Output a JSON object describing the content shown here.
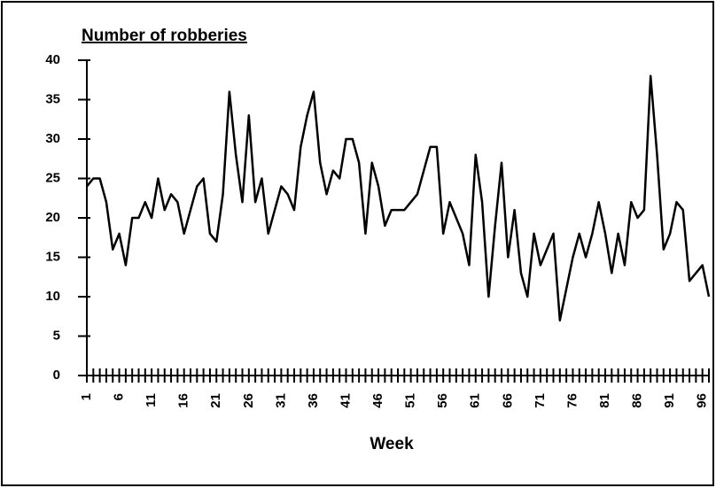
{
  "chart_data": {
    "type": "line",
    "title": "Number of robberies",
    "xlabel": "Week",
    "x": [
      1,
      2,
      3,
      4,
      5,
      6,
      7,
      8,
      9,
      10,
      11,
      12,
      13,
      14,
      15,
      16,
      17,
      18,
      19,
      20,
      21,
      22,
      23,
      24,
      25,
      26,
      27,
      28,
      29,
      30,
      31,
      32,
      33,
      34,
      35,
      36,
      37,
      38,
      39,
      40,
      41,
      42,
      43,
      44,
      45,
      46,
      47,
      48,
      49,
      50,
      51,
      52,
      53,
      54,
      55,
      56,
      57,
      58,
      59,
      60,
      61,
      62,
      63,
      64,
      65,
      66,
      67,
      68,
      69,
      70,
      71,
      72,
      73,
      74,
      75,
      76,
      77,
      78,
      79,
      80,
      81,
      82,
      83,
      84,
      85,
      86,
      87,
      88,
      89,
      90,
      91,
      92,
      93,
      94,
      95,
      96,
      97
    ],
    "series": [
      {
        "name": "Number of robberies",
        "color": "#000000",
        "values": [
          24,
          25,
          25,
          22,
          16,
          18,
          14,
          20,
          20,
          22,
          20,
          25,
          21,
          23,
          22,
          18,
          21,
          24,
          25,
          18,
          17,
          23,
          36,
          28,
          22,
          33,
          22,
          25,
          18,
          21,
          24,
          23,
          21,
          29,
          33,
          36,
          27,
          23,
          26,
          25,
          30,
          30,
          27,
          18,
          27,
          24,
          19,
          21,
          21,
          21,
          22,
          23,
          26,
          29,
          29,
          18,
          22,
          20,
          18,
          14,
          28,
          22,
          10,
          19,
          27,
          15,
          21,
          13,
          10,
          18,
          14,
          16,
          18,
          7,
          11,
          15,
          18,
          15,
          18,
          22,
          18,
          13,
          18,
          14,
          22,
          20,
          21,
          38,
          28,
          16,
          18,
          22,
          21,
          12,
          13,
          14,
          10
        ]
      }
    ],
    "xlim": [
      1,
      97
    ],
    "xticks": [
      1,
      6,
      11,
      16,
      21,
      26,
      31,
      36,
      41,
      46,
      51,
      56,
      61,
      66,
      71,
      76,
      81,
      86,
      91,
      96
    ],
    "ylim": [
      0,
      40
    ],
    "yticks": [
      0,
      5,
      10,
      15,
      20,
      25,
      30,
      35,
      40
    ],
    "grid": false
  }
}
